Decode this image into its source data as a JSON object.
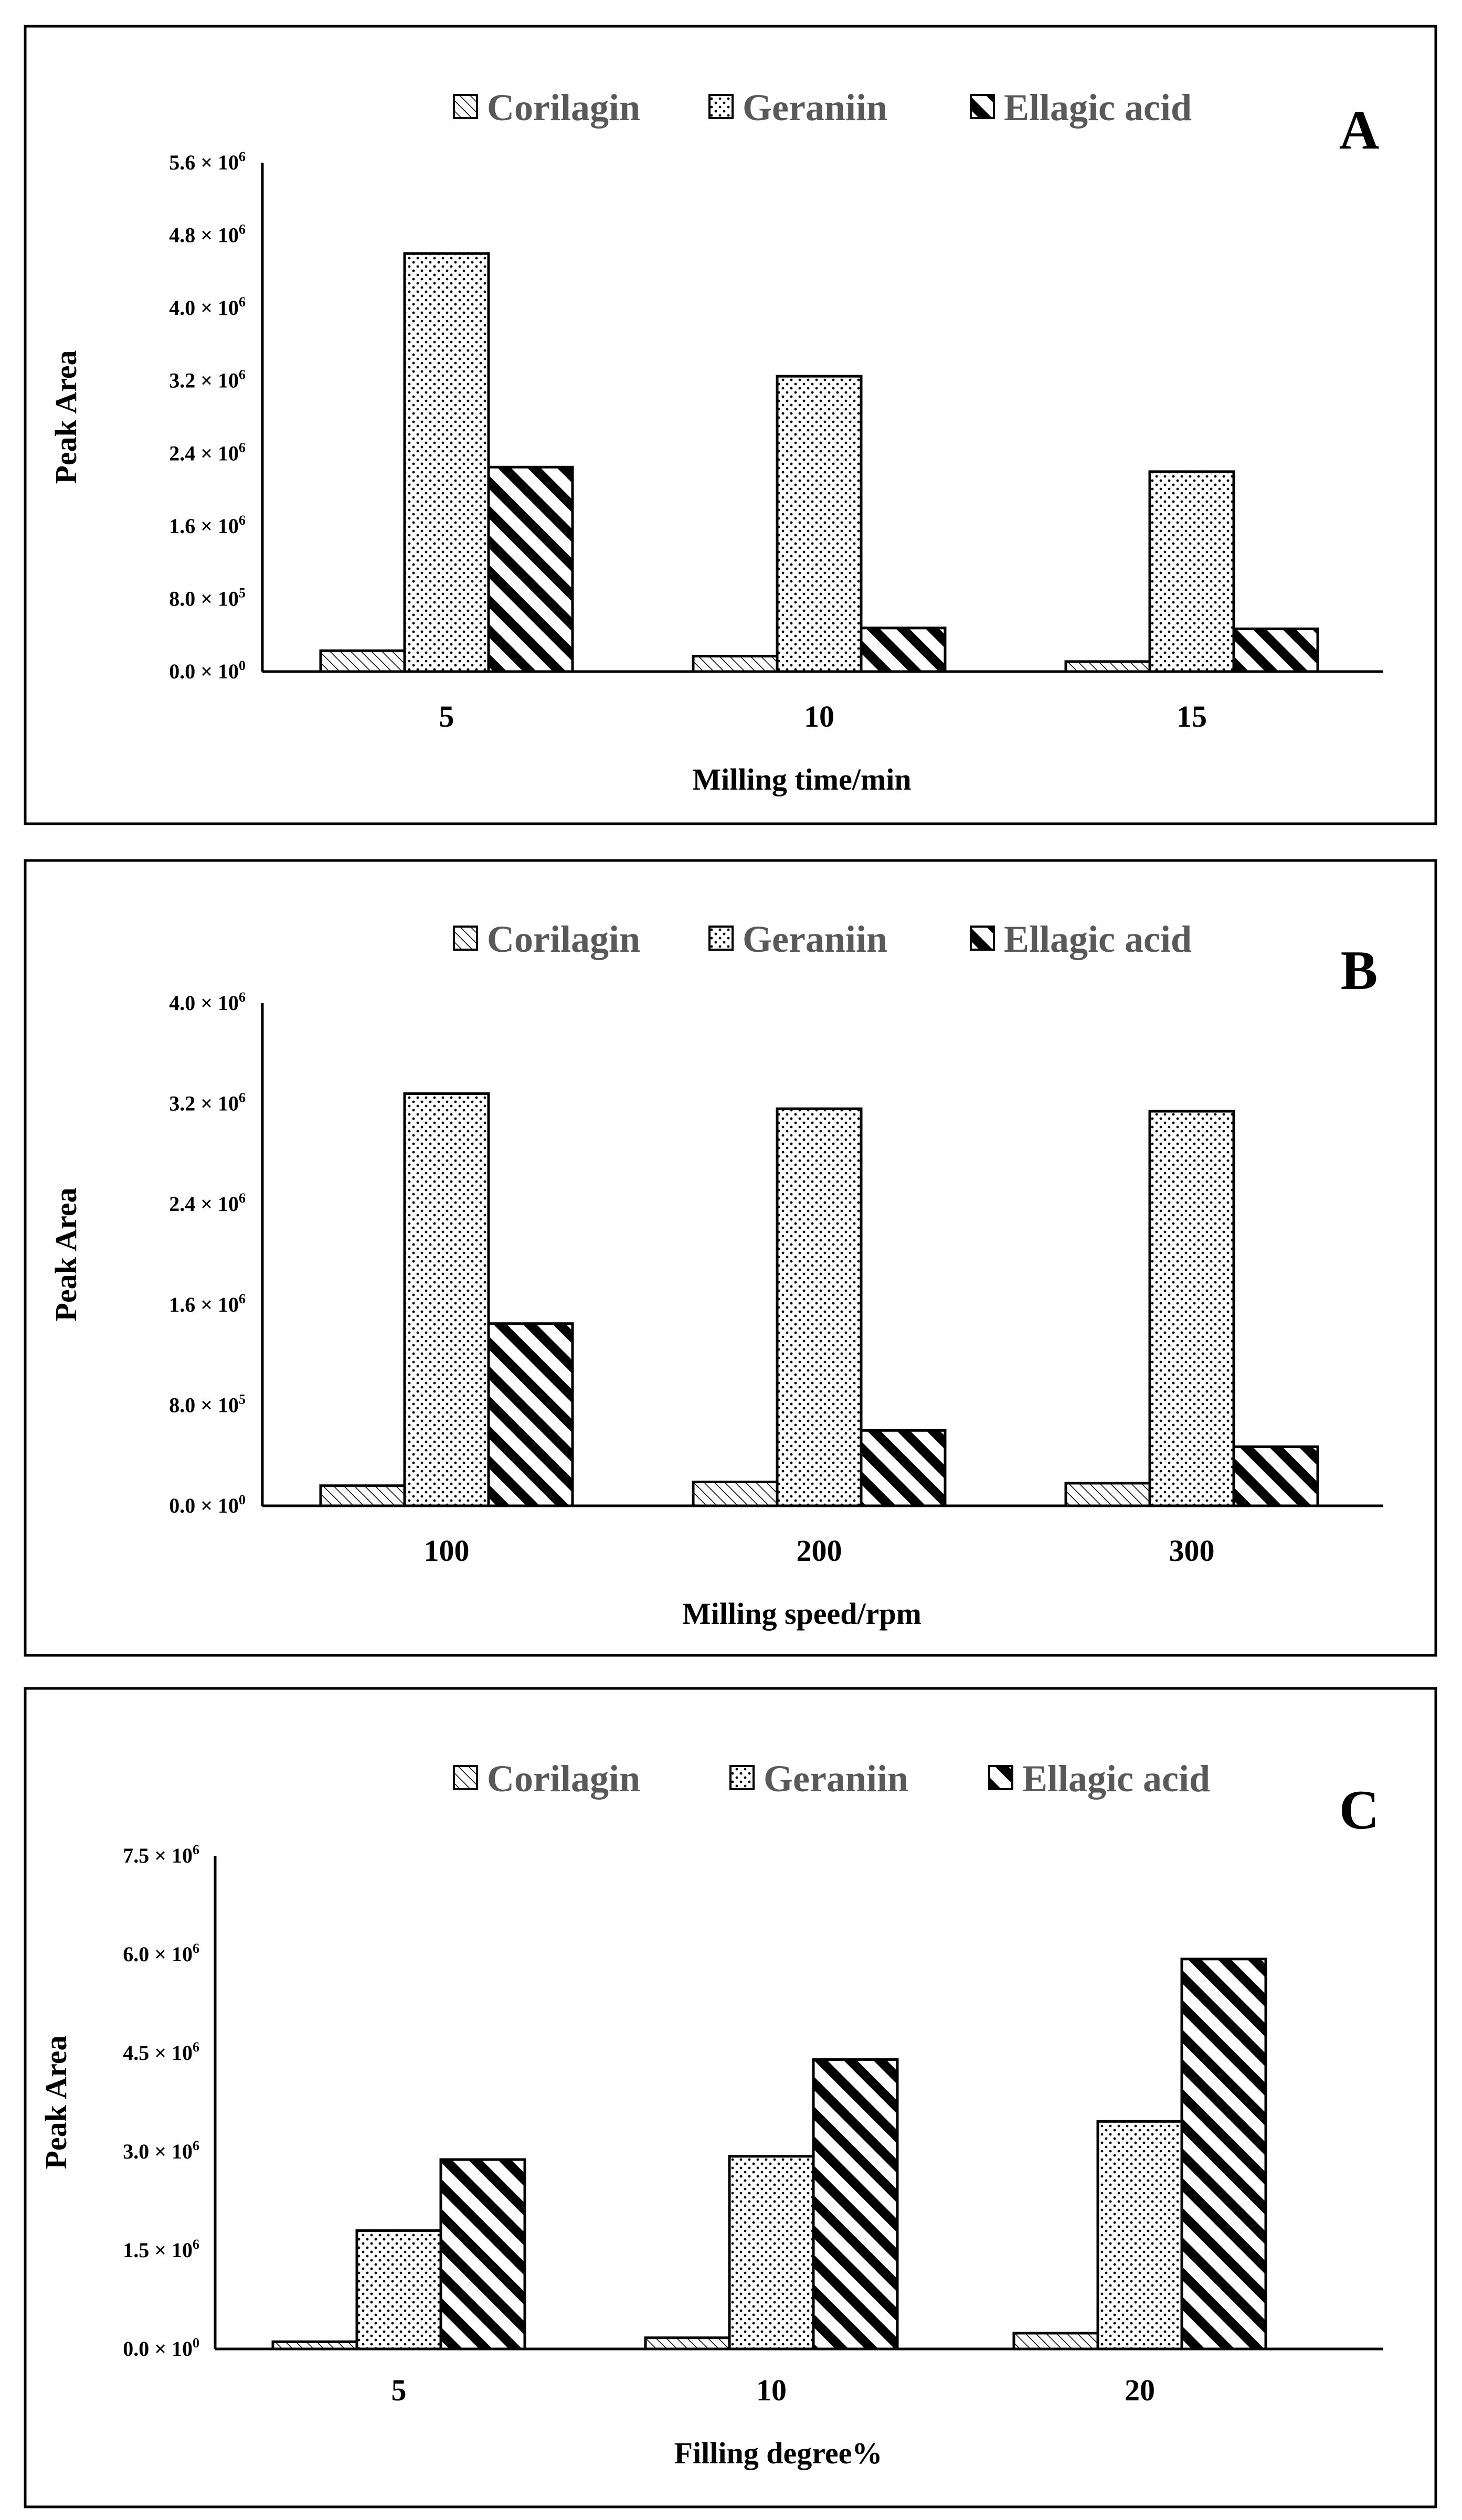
{
  "colors": {
    "bar_stroke": "#000000",
    "legend_text": "#595959",
    "background": "#ffffff"
  },
  "chart_data": [
    {
      "type": "bar",
      "panel": "A",
      "series": [
        {
          "name": "Corilagin",
          "pattern": "fine-diagonal-hatch",
          "values": [
            230000,
            170000,
            110000
          ]
        },
        {
          "name": "Geraniin",
          "pattern": "dots",
          "values": [
            4600000,
            3250000,
            2200000
          ]
        },
        {
          "name": "Ellagic acid",
          "pattern": "bold-diagonal-stripes",
          "values": [
            2250000,
            480000,
            470000
          ]
        }
      ],
      "categories": [
        "5",
        "10",
        "15"
      ],
      "xlabel": "Milling time/min",
      "ylabel": "Peak Area",
      "ylim": [
        0,
        5600000
      ],
      "yticks": [
        {
          "m": "0.0",
          "e": "0"
        },
        {
          "m": "8.0",
          "e": "5"
        },
        {
          "m": "1.6",
          "e": "6"
        },
        {
          "m": "2.4",
          "e": "6"
        },
        {
          "m": "3.2",
          "e": "6"
        },
        {
          "m": "4.0",
          "e": "6"
        },
        {
          "m": "4.8",
          "e": "6"
        },
        {
          "m": "5.6",
          "e": "6"
        }
      ],
      "legend_position": "top"
    },
    {
      "type": "bar",
      "panel": "B",
      "series": [
        {
          "name": "Corilagin",
          "pattern": "fine-diagonal-hatch",
          "values": [
            160000,
            190000,
            180000
          ]
        },
        {
          "name": "Geraniin",
          "pattern": "dots",
          "values": [
            3280000,
            3160000,
            3140000
          ]
        },
        {
          "name": "Ellagic acid",
          "pattern": "bold-diagonal-stripes",
          "values": [
            1450000,
            600000,
            470000
          ]
        }
      ],
      "categories": [
        "100",
        "200",
        "300"
      ],
      "xlabel": "Milling speed/rpm",
      "ylabel": "Peak Area",
      "ylim": [
        0,
        4000000
      ],
      "yticks": [
        {
          "m": "0.0",
          "e": "0"
        },
        {
          "m": "8.0",
          "e": "5"
        },
        {
          "m": "1.6",
          "e": "6"
        },
        {
          "m": "2.4",
          "e": "6"
        },
        {
          "m": "3.2",
          "e": "6"
        },
        {
          "m": "4.0",
          "e": "6"
        }
      ],
      "legend_position": "top"
    },
    {
      "type": "bar",
      "panel": "C",
      "series": [
        {
          "name": "Corilagin",
          "pattern": "fine-diagonal-hatch",
          "values": [
            110000,
            170000,
            240000
          ]
        },
        {
          "name": "Geraniin",
          "pattern": "dots",
          "values": [
            1800000,
            2930000,
            3460000
          ]
        },
        {
          "name": "Ellagic acid",
          "pattern": "bold-diagonal-stripes",
          "values": [
            2880000,
            4400000,
            5930000
          ]
        }
      ],
      "categories": [
        "5",
        "10",
        "20"
      ],
      "xlabel": "Filling degree%",
      "ylabel": "Peak Area",
      "ylim": [
        0,
        7500000
      ],
      "yticks": [
        {
          "m": "0.0",
          "e": "0"
        },
        {
          "m": "1.5",
          "e": "6"
        },
        {
          "m": "3.0",
          "e": "6"
        },
        {
          "m": "4.5",
          "e": "6"
        },
        {
          "m": "6.0",
          "e": "6"
        },
        {
          "m": "7.5",
          "e": "6"
        }
      ],
      "legend_position": "top"
    }
  ]
}
